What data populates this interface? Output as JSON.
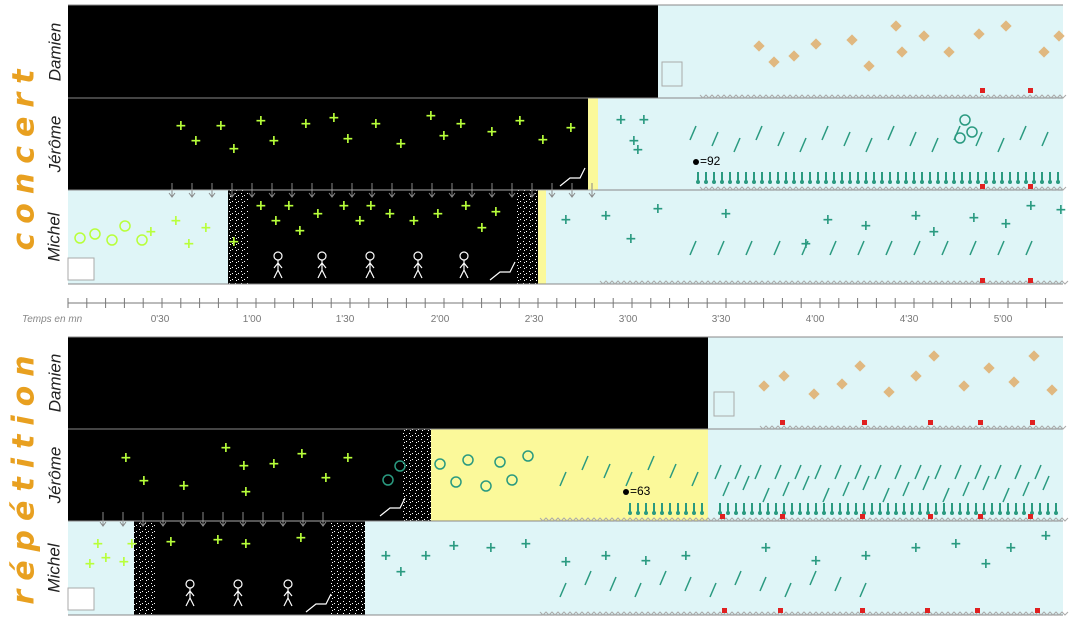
{
  "sections": [
    {
      "label": "concert"
    },
    {
      "label": "répétition"
    }
  ],
  "players": [
    "Damien",
    "Jérôme",
    "Michel"
  ],
  "timeline": {
    "label": "Temps en mn",
    "ticks": [
      "0'30",
      "1'00",
      "1'30",
      "2'00",
      "2'30",
      "3'00",
      "3'30",
      "4'00",
      "4'30",
      "5'00"
    ]
  },
  "tempo_marks": {
    "concert": "=92",
    "repetition": "=63"
  },
  "colors": {
    "black_zone": "#000000",
    "cyan_zone": "#dff5f7",
    "yellow_zone": "#fbf99a",
    "accent_orange": "#e8a020",
    "green_plus": "#b8ff3a",
    "teal_mark": "#2a9a80",
    "tan_diamond": "#e0b880",
    "red_marker": "#e02020",
    "arrow_grey": "#888888"
  }
}
